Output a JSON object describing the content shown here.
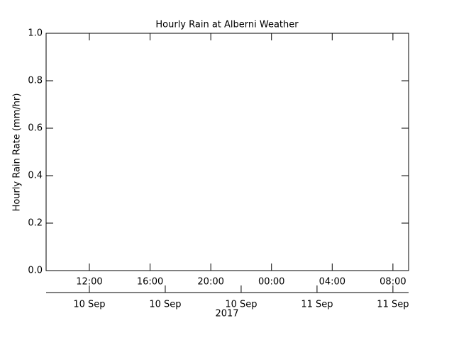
{
  "chart_data": {
    "type": "line",
    "title": "Hourly Rain at Alberni Weather",
    "ylabel": "Hourly Rain Rate (mm/hr)",
    "series": [],
    "xlim": [
      "2017-09-10T09:09",
      "2017-09-11T09:02"
    ],
    "xticks": [
      {
        "value": "2017-09-10T12:00",
        "label": "12:00"
      },
      {
        "value": "2017-09-10T16:00",
        "label": "16:00"
      },
      {
        "value": "2017-09-10T20:00",
        "label": "20:00"
      },
      {
        "value": "2017-09-11T00:00",
        "label": "00:00"
      },
      {
        "value": "2017-09-11T04:00",
        "label": "04:00"
      },
      {
        "value": "2017-09-11T08:00",
        "label": "08:00"
      }
    ],
    "x2ticks": [
      {
        "value": "2017-09-10T12:00",
        "label": "10 Sep"
      },
      {
        "value": "2017-09-10T17:00",
        "label": "10 Sep"
      },
      {
        "value": "2017-09-10T22:00",
        "label": "10 Sep"
      },
      {
        "value": "2017-09-11T03:00",
        "label": "11 Sep"
      },
      {
        "value": "2017-09-11T08:00",
        "label": "11 Sep"
      }
    ],
    "x2label": "2017",
    "ylim": [
      0,
      1
    ],
    "yticks": [
      {
        "value": 0,
        "label": "0.0"
      },
      {
        "value": 0.2,
        "label": "0.2"
      },
      {
        "value": 0.4,
        "label": "0.4"
      },
      {
        "value": 0.6,
        "label": "0.6"
      },
      {
        "value": 0.8,
        "label": "0.8"
      },
      {
        "value": 1,
        "label": "1.0"
      }
    ]
  }
}
